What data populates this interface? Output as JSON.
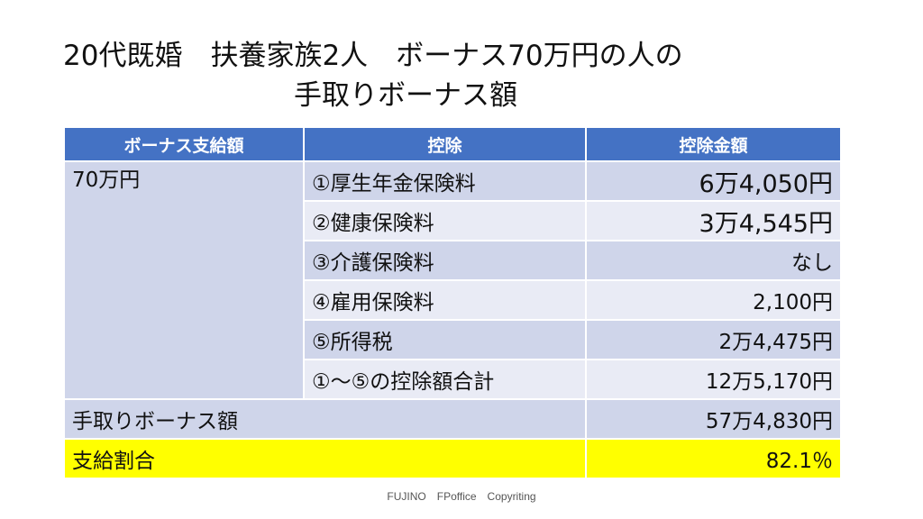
{
  "title": {
    "line1": "20代既婚　扶養家族2人　ボーナス70万円の人の",
    "line2": "手取りボーナス額"
  },
  "table": {
    "headers": [
      "ボーナス支給額",
      "控除",
      "控除金額"
    ],
    "bonus_amount": "70万円",
    "deductions": [
      {
        "label": "①厚生年金保険料",
        "amount": "6万4,050円"
      },
      {
        "label": "②健康保険料",
        "amount": "3万4,545円"
      },
      {
        "label": "③介護保険料",
        "amount": "なし"
      },
      {
        "label": "④雇用保険料",
        "amount": "2,100円"
      },
      {
        "label": "⑤所得税",
        "amount": "2万4,475円"
      },
      {
        "label": "①～⑤の控除額合計",
        "amount": "12万5,170円"
      }
    ],
    "net": {
      "label": "手取りボーナス額",
      "amount": "57万4,830円"
    },
    "ratio": {
      "label": "支給割合",
      "amount": "82.1％"
    }
  },
  "footer": "FUJINO　FPoffice　Copyriting",
  "colors": {
    "header_bg": "#4472c4",
    "row_dark": "#cfd5ea",
    "row_light": "#e9ebf5",
    "highlight": "#ffff00"
  }
}
